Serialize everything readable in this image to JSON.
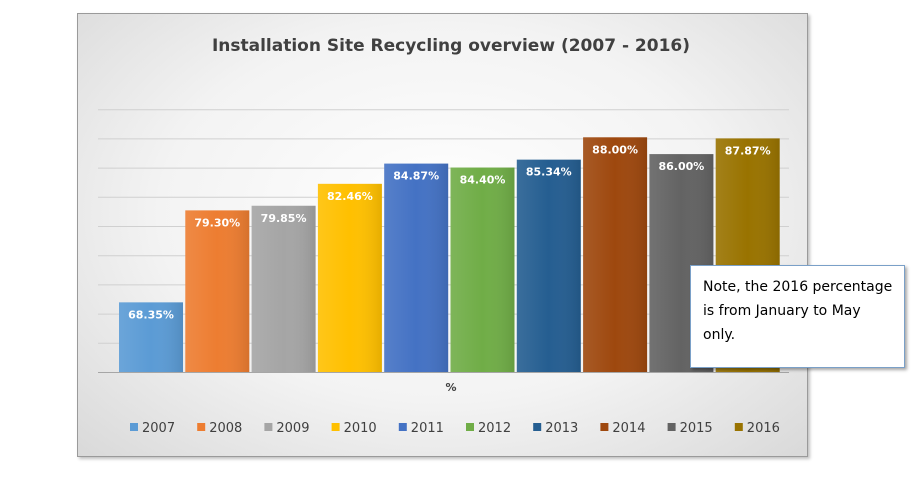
{
  "chart_data": {
    "type": "bar",
    "title": "Installation Site Recycling overview (2007 - 2016)",
    "xlabel": "%",
    "ylabel": "",
    "ylim": [
      60,
      90
    ],
    "grid": true,
    "legend_position": "bottom",
    "categories": [
      "2007",
      "2008",
      "2009",
      "2010",
      "2011",
      "2012",
      "2013",
      "2014",
      "2015",
      "2016"
    ],
    "values": [
      68.35,
      79.3,
      79.85,
      82.46,
      84.87,
      84.4,
      85.34,
      88.0,
      86.0,
      87.87
    ],
    "data_labels": [
      "68.35%",
      "79.30%",
      "79.85%",
      "82.46%",
      "84.87%",
      "84.40%",
      "85.34%",
      "88.00%",
      "86.00%",
      "87.87%"
    ],
    "colors": [
      "#5B9BD5",
      "#ED7D31",
      "#A5A5A5",
      "#FFC000",
      "#4472C4",
      "#70AD47",
      "#255E91",
      "#9E480E",
      "#636363",
      "#997300"
    ]
  },
  "note": {
    "text": "Note, the 2016 percentage is from January to May only."
  }
}
